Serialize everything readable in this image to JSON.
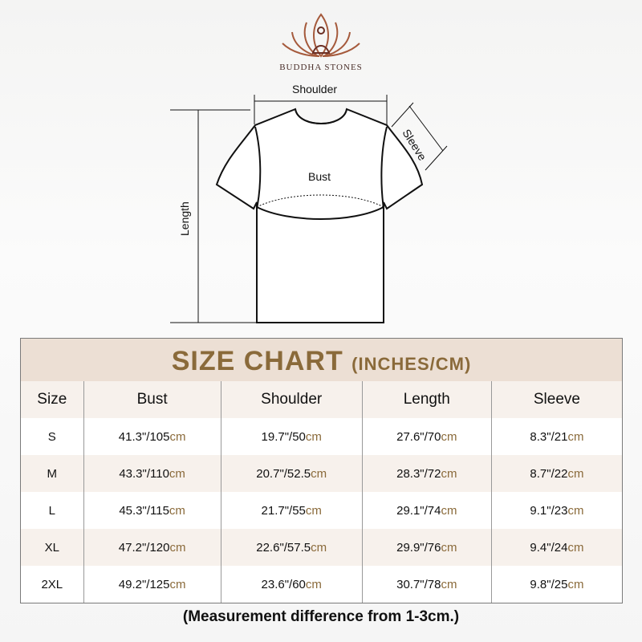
{
  "brand": "BUDDHA STONES",
  "diagram": {
    "shoulder": "Shoulder",
    "sleeve": "Sleeve",
    "bust": "Bust",
    "length": "Length"
  },
  "table": {
    "title": "SIZE CHART",
    "title_units": "(INCHES/CM)",
    "headers": [
      "Size",
      "Bust",
      "Shoulder",
      "Length",
      "Sleeve"
    ],
    "unit": "cm",
    "rows": [
      {
        "size": "S",
        "values": [
          "41.3\"/105",
          "19.7\"/50",
          "27.6\"/70",
          "8.3\"/21"
        ]
      },
      {
        "size": "M",
        "values": [
          "43.3\"/110",
          "20.7\"/52.5",
          "28.3\"/72",
          "8.7\"/22"
        ]
      },
      {
        "size": "L",
        "values": [
          "45.3\"/115",
          "21.7\"/55",
          "29.1\"/74",
          "9.1\"/23"
        ]
      },
      {
        "size": "XL",
        "values": [
          "47.2\"/120",
          "22.6\"/57.5",
          "29.9\"/76",
          "9.4\"/24"
        ]
      },
      {
        "size": "2XL",
        "values": [
          "49.2\"/125",
          "23.6\"/60",
          "30.7\"/78",
          "9.8\"/25"
        ]
      }
    ]
  },
  "note": "(Measurement difference from 1-3cm.)",
  "colors": {
    "accent": "#8a6a3a",
    "title_bg": "#ecdfd4",
    "logo": "#a0522d"
  }
}
